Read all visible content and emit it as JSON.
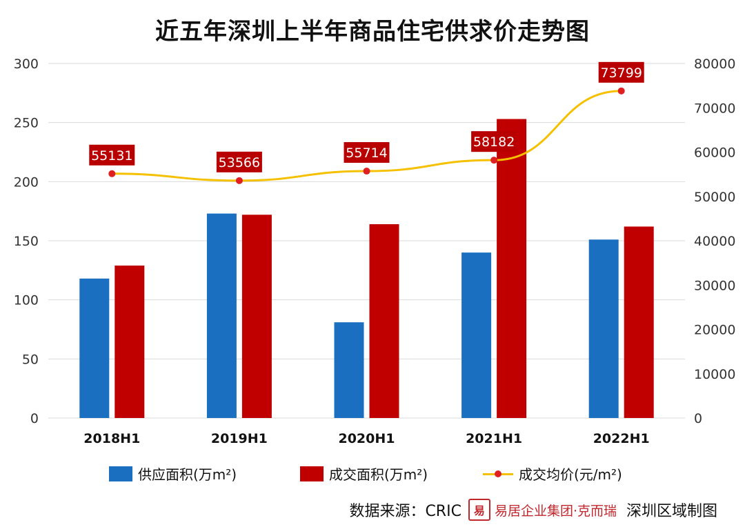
{
  "colors": {
    "supply": "#1a6fc0",
    "deal": "#c00000",
    "line": "#f5c000",
    "line_marker": "#e02020",
    "label_bg": "#b80000",
    "grid": "#d9d9d9",
    "axis_text": "#333333"
  },
  "chart_data": {
    "type": "bar",
    "title": "近五年深圳上半年商品住宅供求价走势图",
    "categories": [
      "2018H1",
      "2019H1",
      "2020H1",
      "2021H1",
      "2022H1"
    ],
    "series": [
      {
        "name": "供应面积(万m²)",
        "type": "bar",
        "axis": "left",
        "values": [
          118,
          173,
          81,
          140,
          151
        ]
      },
      {
        "name": "成交面积(万m²)",
        "type": "bar",
        "axis": "left",
        "values": [
          129,
          172,
          164,
          253,
          162
        ]
      },
      {
        "name": "成交均价(元/m²)",
        "type": "line",
        "axis": "right",
        "values": [
          55131,
          53566,
          55714,
          58182,
          73799
        ],
        "data_labels": [
          "55131",
          "53566",
          "55714",
          "58182",
          "73799"
        ]
      }
    ],
    "y_left": {
      "min": 0,
      "max": 300,
      "ticks": [
        0,
        50,
        100,
        150,
        200,
        250,
        300
      ]
    },
    "y_right": {
      "min": 0,
      "max": 80000,
      "ticks": [
        0,
        10000,
        20000,
        30000,
        40000,
        50000,
        60000,
        70000,
        80000
      ]
    },
    "grid": true,
    "legend_position": "bottom"
  },
  "legend": {
    "supply": "供应面积(万m²)",
    "deal": "成交面积(万m²)",
    "price": "成交均价(元/m²)"
  },
  "footer": {
    "source": "数据来源：CRIC",
    "logo_char": "易",
    "brand": "易居企业集团·克而瑞",
    "note": "深圳区域制图"
  }
}
